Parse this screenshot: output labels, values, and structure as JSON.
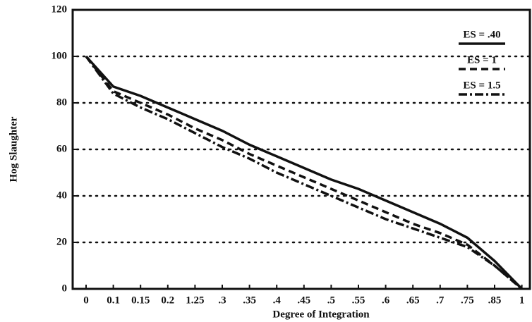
{
  "chart_data": {
    "type": "line",
    "xlabel": "Degree of Integration",
    "ylabel": "Hog Slaughter",
    "categories": [
      "0",
      "0.1",
      "0.15",
      "0.2",
      "1.25",
      ".3",
      ".35",
      ".4",
      ".45",
      ".5",
      ".55",
      ".6",
      ".65",
      ".7",
      ".75",
      ".85",
      "1"
    ],
    "series": [
      {
        "name": "ES = .40",
        "color": "#111111",
        "style": "solid",
        "values": [
          100,
          87,
          83,
          78,
          73,
          68,
          62,
          57,
          52,
          47,
          43,
          38,
          33,
          28,
          22,
          12,
          0
        ]
      },
      {
        "name": "ES = 1",
        "color": "#111111",
        "style": "dashed",
        "values": [
          100,
          85,
          80,
          75,
          69,
          64,
          58,
          53,
          48,
          43,
          38,
          33,
          28,
          24,
          19,
          10,
          0
        ]
      },
      {
        "name": "ES = 1.5",
        "color": "#111111",
        "style": "dashdot",
        "values": [
          100,
          84,
          78,
          73,
          67,
          61,
          56,
          50,
          45,
          40,
          35,
          30,
          26,
          22,
          18,
          10,
          0
        ]
      }
    ],
    "ylim": [
      0,
      120
    ],
    "yticks": [
      0,
      20,
      40,
      60,
      80,
      100,
      120
    ],
    "grid": true,
    "legend": "upper right"
  }
}
